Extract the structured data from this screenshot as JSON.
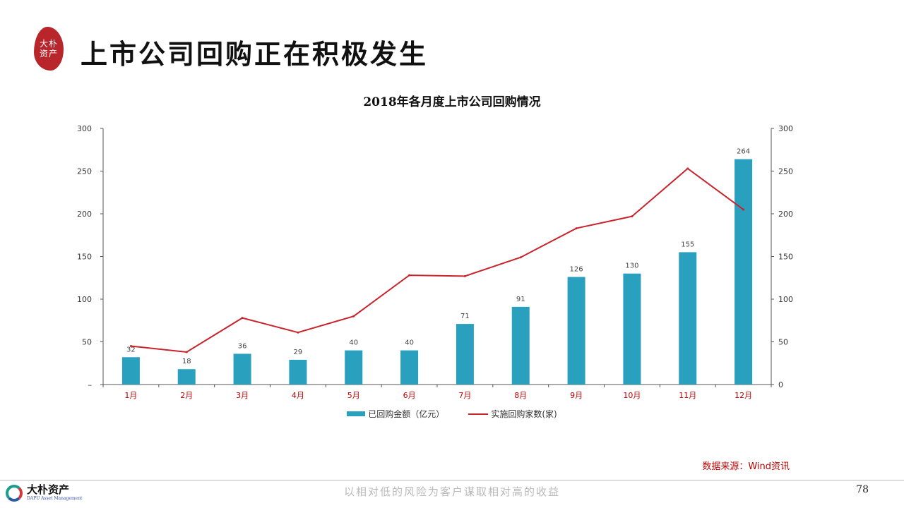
{
  "header": {
    "seal_text": "大朴资产",
    "title": "上市公司回购正在积极发生"
  },
  "chart_data": {
    "type": "bar",
    "title": "2018年各月度上市公司回购情况",
    "categories": [
      "1月",
      "2月",
      "3月",
      "4月",
      "5月",
      "6月",
      "7月",
      "8月",
      "9月",
      "10月",
      "11月",
      "12月"
    ],
    "series": [
      {
        "name": "已回购金额（亿元）",
        "type": "bar",
        "axis": "left",
        "color": "#2aa0bf",
        "values": [
          32,
          18,
          36,
          29,
          40,
          40,
          71,
          91,
          126,
          130,
          155,
          264
        ],
        "data_labels": true
      },
      {
        "name": "实施回购家数(家)",
        "type": "line",
        "axis": "right",
        "color": "#c8242b",
        "values": [
          45,
          38,
          78,
          61,
          80,
          128,
          127,
          149,
          183,
          197,
          253,
          205
        ],
        "data_labels": false
      }
    ],
    "left_axis": {
      "ylim": [
        0,
        300
      ],
      "ticks": [
        0,
        50,
        100,
        150,
        200,
        250,
        300
      ],
      "tick_labels": [
        "–",
        "50",
        "100",
        "150",
        "200",
        "250",
        "300"
      ]
    },
    "right_axis": {
      "ylim": [
        0,
        300
      ],
      "ticks": [
        0,
        50,
        100,
        150,
        200,
        250,
        300
      ],
      "tick_labels": [
        "0",
        "50",
        "100",
        "150",
        "200",
        "250",
        "300"
      ]
    },
    "grid": false,
    "legend_position": "bottom"
  },
  "source": "数据来源：Wind资讯",
  "footer": {
    "logo_cn": "大朴资产",
    "logo_en": "DAPU Asset Management",
    "slogan": "以相对低的风险为客户谋取相对高的收益",
    "page_number": "78"
  }
}
